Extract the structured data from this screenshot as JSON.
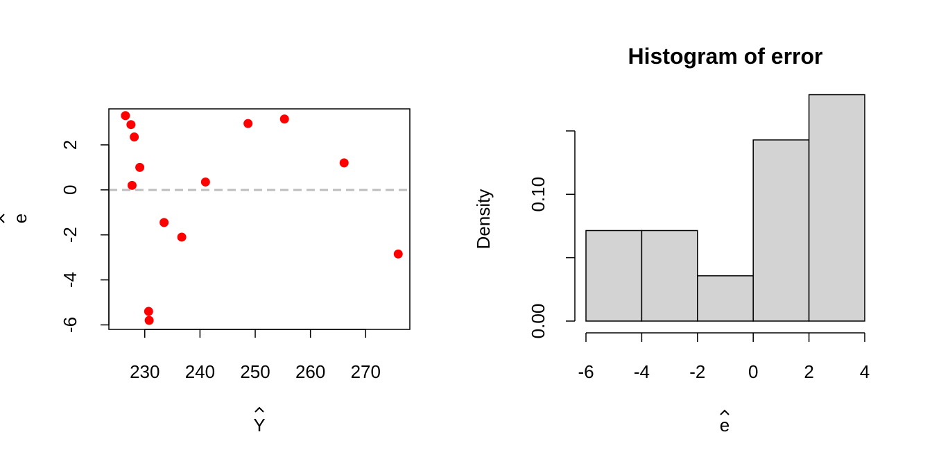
{
  "chart_data": [
    {
      "type": "scatter",
      "title": "",
      "xlabel": "Y",
      "ylabel": "e",
      "xlabel_accent": "hat",
      "ylabel_accent": "hat",
      "xlim": [
        223.5,
        278
      ],
      "ylim": [
        -6.2,
        3.6
      ],
      "xticks": [
        230,
        240,
        250,
        260,
        270
      ],
      "yticks": [
        -6,
        -4,
        -2,
        0,
        2
      ],
      "point_color": "#ff0000",
      "reference_line": {
        "y": 0,
        "color": "#bebebe",
        "style": "dashed"
      },
      "grid": false,
      "points": [
        {
          "x": 226.5,
          "y": 3.3
        },
        {
          "x": 227.5,
          "y": 2.9
        },
        {
          "x": 228.1,
          "y": 2.35
        },
        {
          "x": 227.7,
          "y": 0.2
        },
        {
          "x": 229.1,
          "y": 1.0
        },
        {
          "x": 230.7,
          "y": -5.4
        },
        {
          "x": 230.8,
          "y": -5.8
        },
        {
          "x": 233.5,
          "y": -1.45
        },
        {
          "x": 236.7,
          "y": -2.1
        },
        {
          "x": 241.0,
          "y": 0.35
        },
        {
          "x": 248.7,
          "y": 2.95
        },
        {
          "x": 255.3,
          "y": 3.15
        },
        {
          "x": 266.1,
          "y": 1.2
        },
        {
          "x": 275.9,
          "y": -2.85
        }
      ]
    },
    {
      "type": "bar",
      "subtype": "histogram",
      "title": "Histogram of error",
      "xlabel": "e",
      "xlabel_accent": "hat",
      "ylabel": "Density",
      "xlim": [
        -6,
        4
      ],
      "ylim": [
        0,
        0.18
      ],
      "xticks": [
        -6,
        -4,
        -2,
        0,
        2,
        4
      ],
      "yticks": [
        0.0,
        0.05,
        0.1,
        0.15
      ],
      "ytick_labels": [
        "0.00",
        "",
        "0.10",
        ""
      ],
      "bar_color": "#d3d3d3",
      "grid": false,
      "bins": [
        {
          "from": -6,
          "to": -4,
          "density": 0.0714
        },
        {
          "from": -4,
          "to": -2,
          "density": 0.0714
        },
        {
          "from": -2,
          "to": 0,
          "density": 0.0357
        },
        {
          "from": 0,
          "to": 2,
          "density": 0.1429
        },
        {
          "from": 2,
          "to": 4,
          "density": 0.1786
        }
      ]
    }
  ]
}
